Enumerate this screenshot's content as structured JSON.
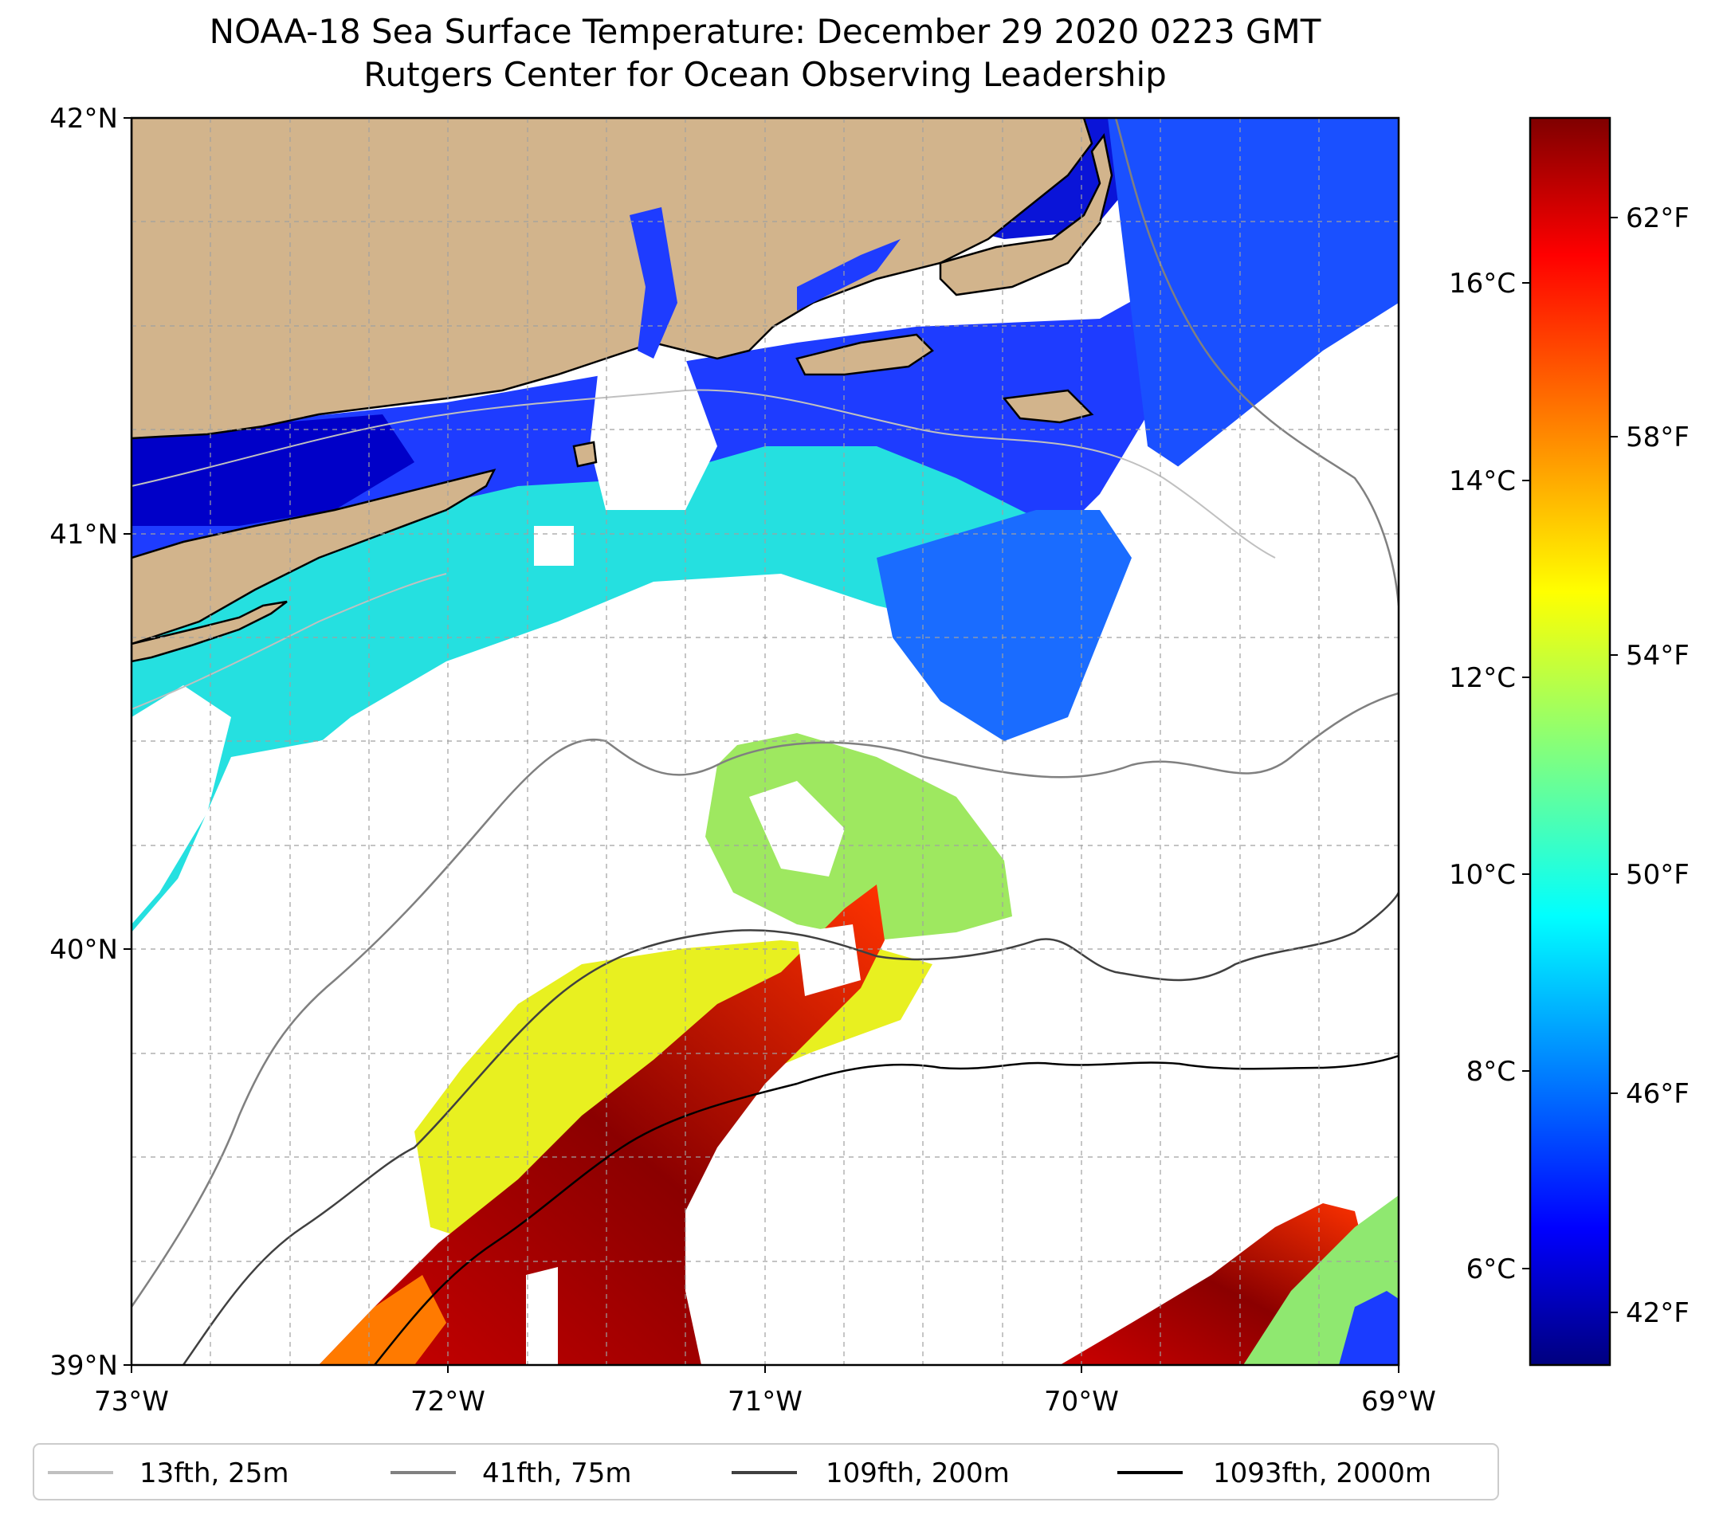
{
  "title": "NOAA-18 Sea Surface Temperature: December 29 2020 0223 GMT",
  "subtitle": "Rutgers Center for Ocean Observing Leadership",
  "map": {
    "lon_range": [
      -73,
      -69
    ],
    "lat_range": [
      39,
      42
    ],
    "lat_ticks": [
      {
        "value": 42,
        "label": "42°N"
      },
      {
        "value": 41,
        "label": "41°N"
      },
      {
        "value": 40,
        "label": "40°N"
      },
      {
        "value": 39,
        "label": "39°N"
      }
    ],
    "lon_ticks": [
      {
        "value": -73,
        "label": "73°W"
      },
      {
        "value": -72,
        "label": "72°W"
      },
      {
        "value": -71,
        "label": "71°W"
      },
      {
        "value": -70,
        "label": "70°W"
      },
      {
        "value": -69,
        "label": "69°W"
      }
    ],
    "gridlines": "dashed",
    "land_color": "#d2b48c"
  },
  "colorbar": {
    "colormap": "jet",
    "celsius_range": [
      5.2,
      17.5
    ],
    "celsius_ticks": [
      {
        "value": 6,
        "label": "6°C"
      },
      {
        "value": 8,
        "label": "8°C"
      },
      {
        "value": 10,
        "label": "10°C"
      },
      {
        "value": 12,
        "label": "12°C"
      },
      {
        "value": 14,
        "label": "14°C"
      },
      {
        "value": 16,
        "label": "16°C"
      }
    ],
    "fahrenheit_ticks": [
      {
        "value": 42,
        "label": "42°F"
      },
      {
        "value": 46,
        "label": "46°F"
      },
      {
        "value": 50,
        "label": "50°F"
      },
      {
        "value": 54,
        "label": "54°F"
      },
      {
        "value": 58,
        "label": "58°F"
      },
      {
        "value": 62,
        "label": "62°F"
      }
    ]
  },
  "legend": {
    "items": [
      {
        "label": "13fth, 25m",
        "color": "#c0c0c0"
      },
      {
        "label": "41fth, 75m",
        "color": "#808080"
      },
      {
        "label": "109fth, 200m",
        "color": "#404040"
      },
      {
        "label": "1093fth, 2000m",
        "color": "#000000"
      }
    ]
  }
}
